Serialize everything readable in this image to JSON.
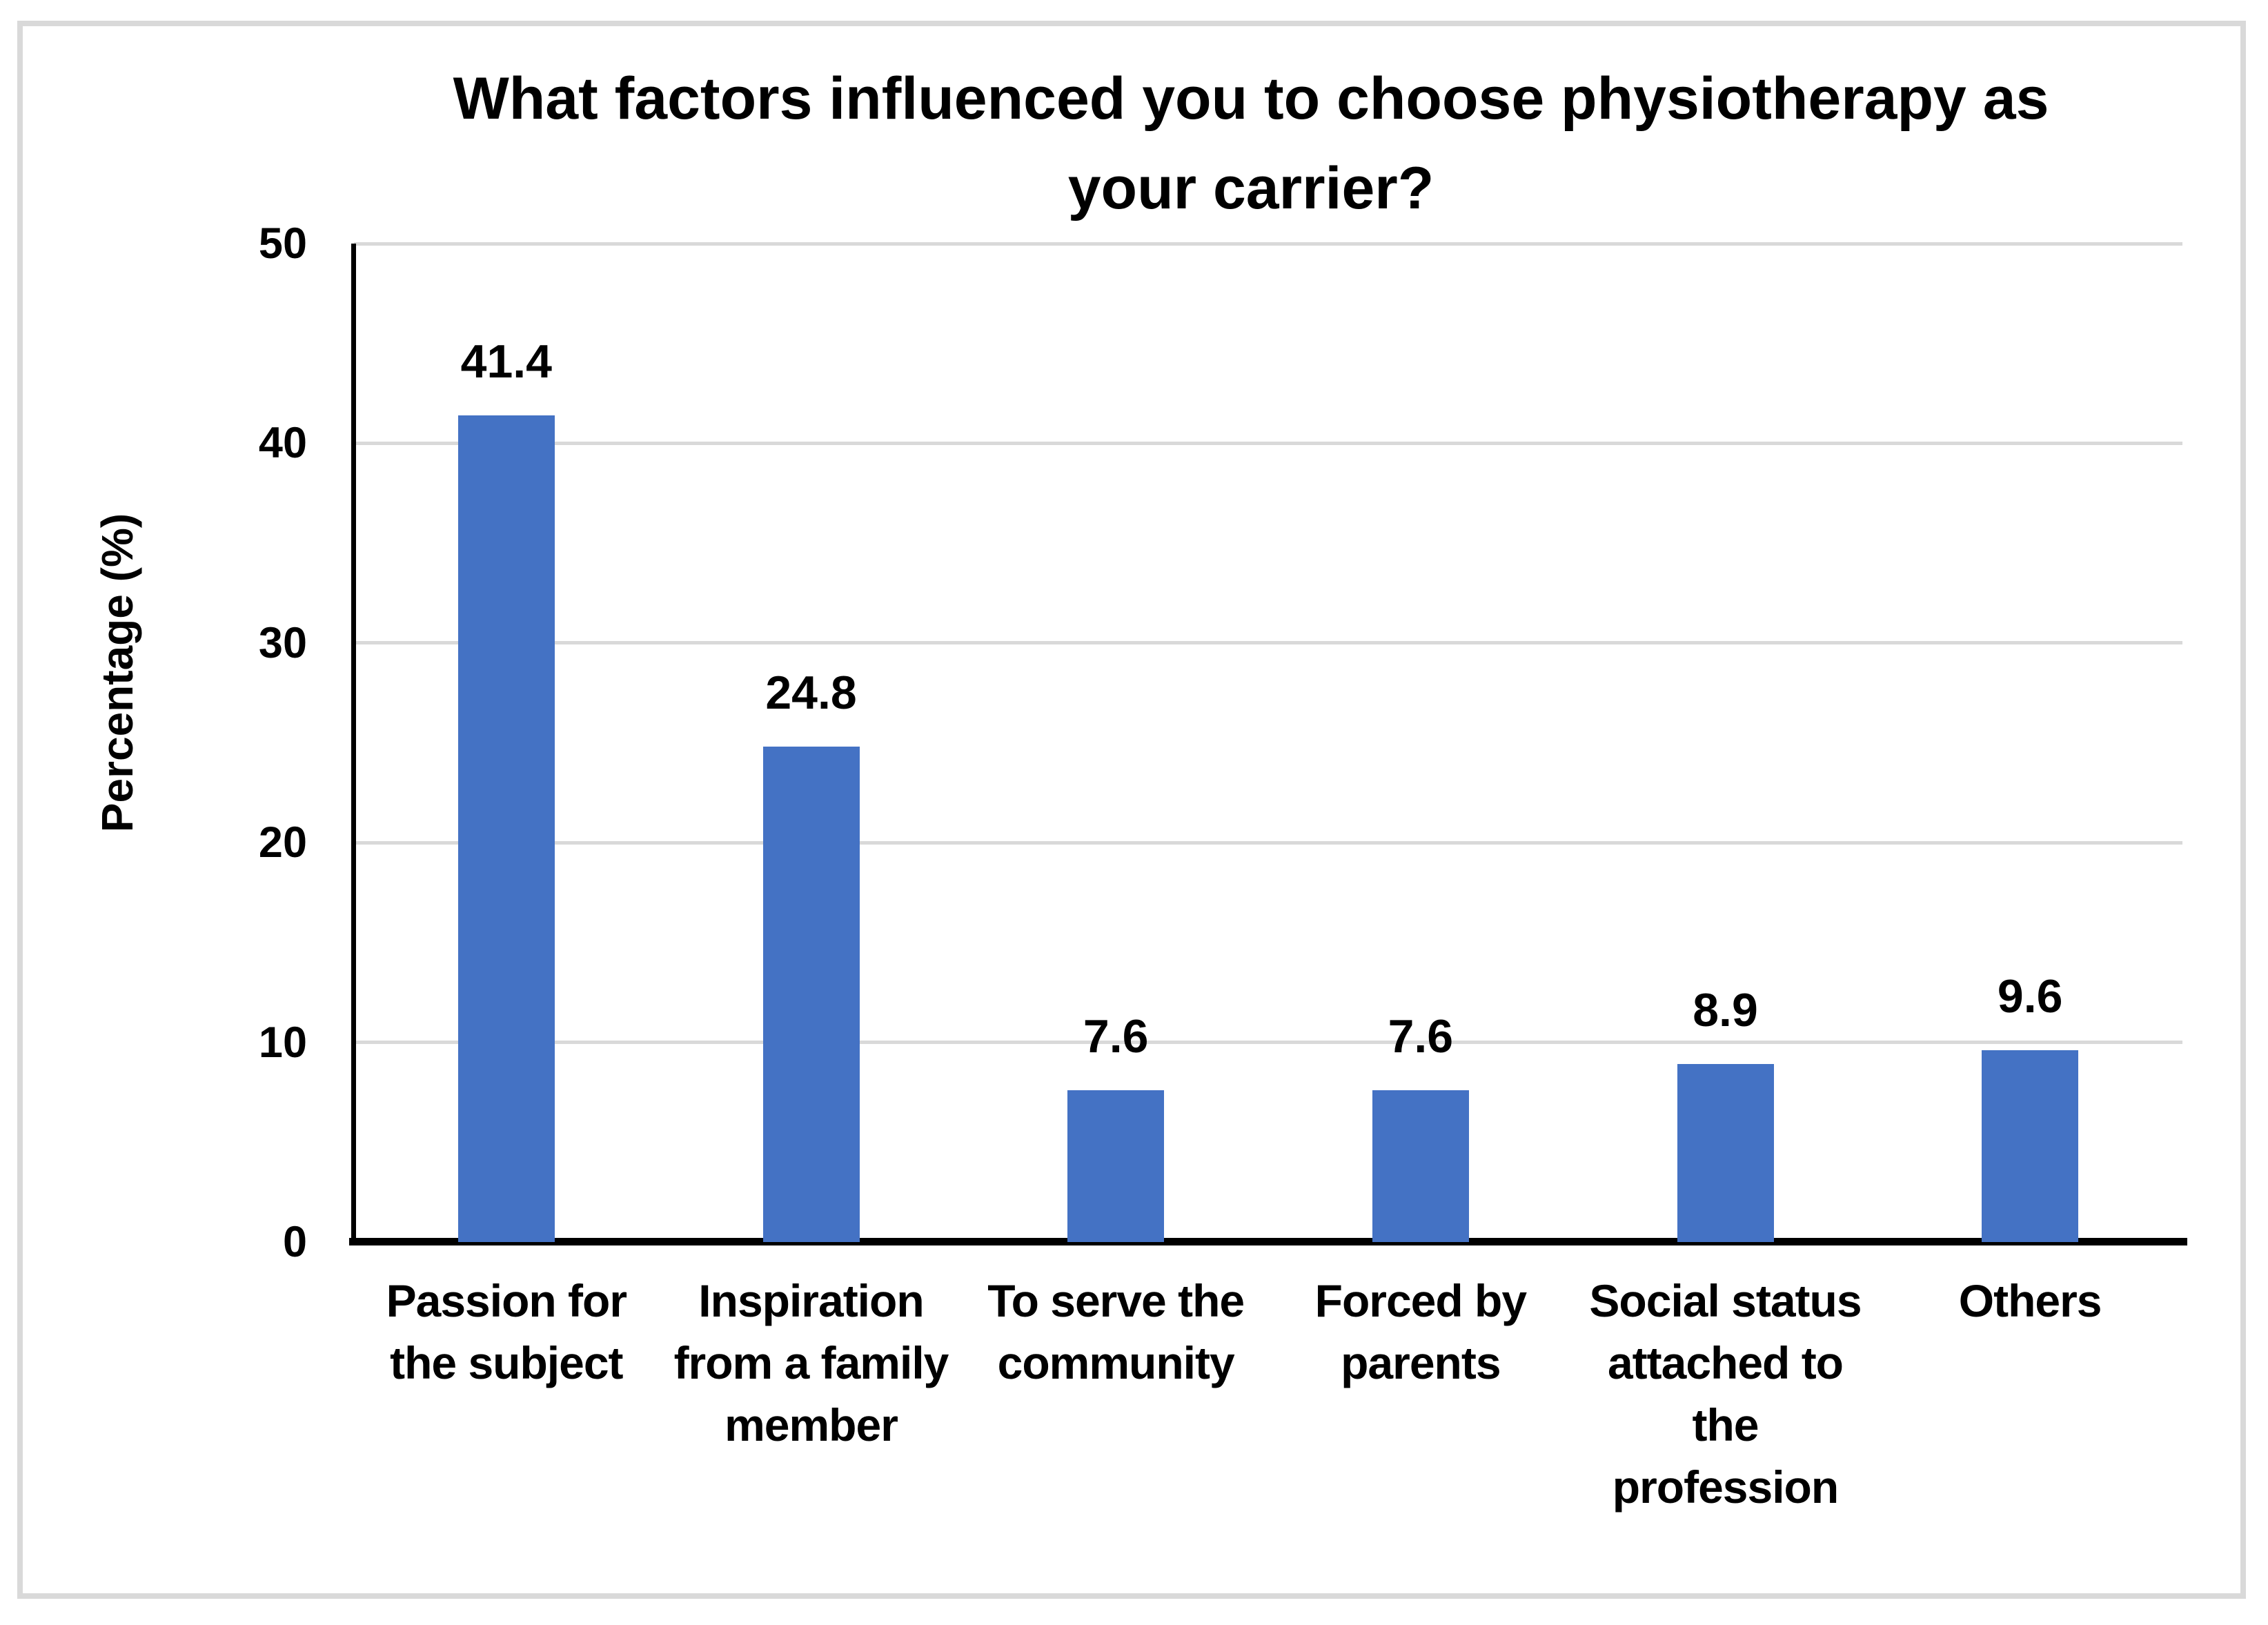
{
  "title": {
    "line1": "What factors influenced you to choose physiotherapy as",
    "line2": "your carrier?"
  },
  "chart_data": {
    "type": "bar",
    "title": "What factors influenced you to choose physiotherapy as your carrier?",
    "categories": [
      "Passion for the subject",
      "Inspiration from a family member",
      "To serve the community",
      "Forced by parents",
      "Social status attached to the profession",
      "Others"
    ],
    "categories_wrapped": [
      "Passion for\nthe subject",
      "Inspiration\nfrom a family\nmember",
      "To serve the\ncommunity",
      "Forced by\nparents",
      "Social status\nattached to\nthe\nprofession",
      "Others"
    ],
    "values": [
      41.4,
      24.8,
      7.6,
      7.6,
      8.9,
      9.6
    ],
    "value_labels": [
      "41.4",
      "24.8",
      "7.6",
      "7.6",
      "8.9",
      "9.6"
    ],
    "xlabel": "",
    "ylabel": "Percentage (%)",
    "ylim": [
      0,
      50
    ],
    "yticks": [
      0,
      10,
      20,
      30,
      40,
      50
    ],
    "grid": "horizontal gridlines on",
    "legend": "none",
    "bar_color": "#4472C4",
    "gridline_color": "#D9D9D9",
    "frame_color": "#D9D9D9",
    "axis_color": "#000000",
    "text_color": "#000000"
  }
}
